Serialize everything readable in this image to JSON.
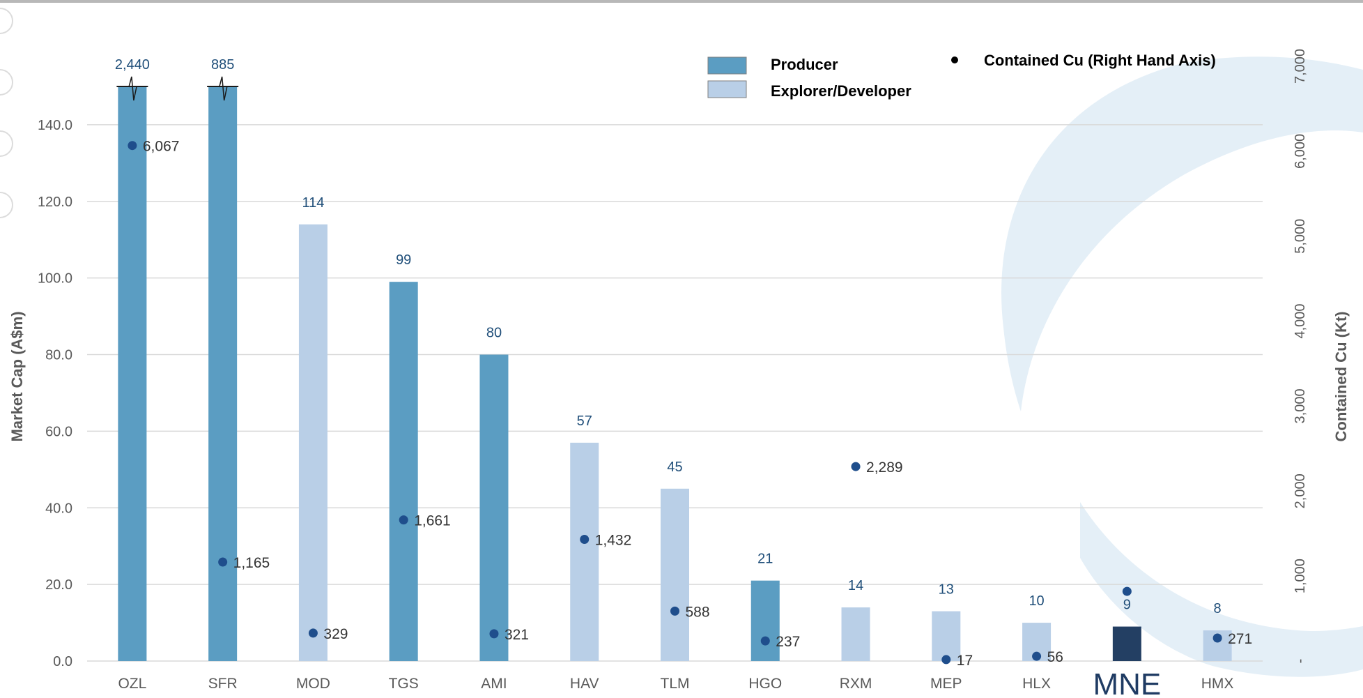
{
  "chart_data": {
    "type": "bar",
    "categories": [
      "OZL",
      "SFR",
      "MOD",
      "TGS",
      "AMI",
      "HAV",
      "TLM",
      "HGO",
      "RXM",
      "MEP",
      "HLX",
      "MNE",
      "HMX"
    ],
    "highlight_category": "MNE",
    "series": [
      {
        "name": "Market Cap (A$m)",
        "axis": "left",
        "values": [
          2440,
          885,
          114,
          99,
          80,
          57,
          45,
          21,
          14,
          13,
          10,
          9,
          8
        ],
        "value_labels": [
          "2,440",
          "885",
          "114",
          "99",
          "80",
          "57",
          "45",
          "21",
          "14",
          "13",
          "10",
          "9",
          "8"
        ],
        "bar_types": [
          "Producer",
          "Producer",
          "Explorer/Developer",
          "Producer",
          "Producer",
          "Explorer/Developer",
          "Explorer/Developer",
          "Producer",
          "Explorer/Developer",
          "Explorer/Developer",
          "Explorer/Developer",
          "MNE",
          "Explorer/Developer"
        ],
        "truncated": [
          true,
          true,
          false,
          false,
          false,
          false,
          false,
          false,
          false,
          false,
          false,
          false,
          false
        ]
      },
      {
        "name": "Contained Cu (Right Hand Axis)",
        "axis": "right",
        "type": "scatter",
        "values": [
          6067,
          1165,
          329,
          1661,
          321,
          1432,
          588,
          237,
          2289,
          17,
          56,
          820,
          271
        ],
        "value_labels": [
          "6,067",
          "1,165",
          "329",
          "1,661",
          "321",
          "1,432",
          "588",
          "237",
          "2,289",
          "17",
          "56",
          "",
          "271"
        ]
      }
    ],
    "legend": {
      "items": [
        {
          "label": "Producer",
          "color": "#5b9dc2"
        },
        {
          "label": "Explorer/Developer",
          "color": "#b9cfe7"
        }
      ],
      "marker_item": {
        "label": "Contained Cu (Right Hand Axis)"
      }
    },
    "ylabel": "Market Cap (A$m)",
    "y2label": "Contained Cu (Kt)",
    "ylim": [
      0,
      150
    ],
    "y2lim": [
      0,
      7000
    ],
    "yticks": [
      "0.0",
      "20.0",
      "40.0",
      "60.0",
      "80.0",
      "100.0",
      "120.0",
      "140.0"
    ],
    "y2ticks": [
      "-",
      "1,000",
      "2,000",
      "3,000",
      "4,000",
      "5,000",
      "6,000",
      "7,000"
    ],
    "grid": true,
    "colors": {
      "producer": "#5b9dc2",
      "explorer": "#b9cfe7",
      "highlight": "#233f63",
      "marker": "#1f4e8c",
      "bar_label": "#1f4e79",
      "grid": "#d9d9d9",
      "watermark": "#e4eff7"
    }
  }
}
